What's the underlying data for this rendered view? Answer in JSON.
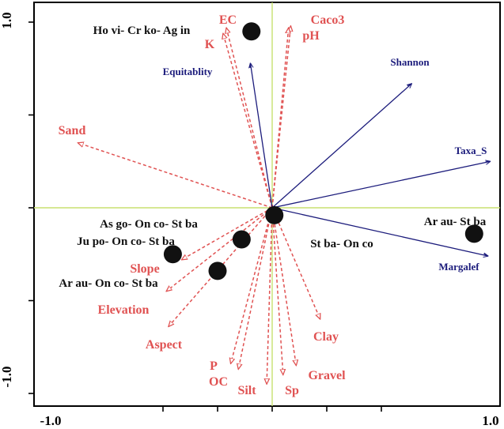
{
  "chart_data": {
    "type": "scatter",
    "title": "",
    "xlabel": "",
    "ylabel": "",
    "xlim": [
      -1.05,
      1.05
    ],
    "ylim": [
      -1.05,
      1.05
    ],
    "x_tick_labels": [
      "-1.0",
      "1.0"
    ],
    "y_tick_labels": [
      "1.0",
      "-1.0"
    ],
    "environmental_vectors": [
      {
        "label": "EC",
        "x": -0.42,
        "y": 0.97
      },
      {
        "label": "K",
        "x": -0.45,
        "y": 0.94
      },
      {
        "label": "Caco3",
        "x": 0.17,
        "y": 0.98
      },
      {
        "label": "pH",
        "x": 0.15,
        "y": 0.97
      },
      {
        "label": "Sand",
        "x": -1.78,
        "y": 0.35
      },
      {
        "label": "Slope",
        "x": -0.83,
        "y": -0.28
      },
      {
        "label": "Elevation",
        "x": -0.97,
        "y": -0.45
      },
      {
        "label": "Aspect",
        "x": -0.95,
        "y": -0.64
      },
      {
        "label": "P",
        "x": -0.38,
        "y": -0.84
      },
      {
        "label": "OC",
        "x": -0.31,
        "y": -0.87
      },
      {
        "label": "Silt",
        "x": -0.05,
        "y": -0.95
      },
      {
        "label": "Sp",
        "x": 0.1,
        "y": -0.9
      },
      {
        "label": "Gravel",
        "x": 0.22,
        "y": -0.85
      },
      {
        "label": "Clay",
        "x": 0.44,
        "y": -0.6
      }
    ],
    "diversity_vectors": [
      {
        "label": "Equitablity",
        "x": -0.2,
        "y": 0.78
      },
      {
        "label": "Shannon",
        "x": 1.28,
        "y": 0.67
      },
      {
        "label": "Taxa_S",
        "x": 2.0,
        "y": 0.25
      },
      {
        "label": "Margalef",
        "x": 1.98,
        "y": -0.26
      }
    ],
    "groups": [
      {
        "label": "Ho vi- Cr ko- Ag in",
        "x": -0.19,
        "y": 0.95
      },
      {
        "label": "Ar au- St ba",
        "x": 1.85,
        "y": -0.14
      },
      {
        "label": "As go- On co- St ba",
        "x": -0.28,
        "y": -0.17
      },
      {
        "label": "Ju po- On co- St ba",
        "x": -0.91,
        "y": -0.25
      },
      {
        "label": "Ar au- On co- St ba",
        "x": -0.5,
        "y": -0.34
      },
      {
        "label": "St ba- On co",
        "x": 0.02,
        "y": -0.04
      }
    ]
  },
  "colors": {
    "environmental": "#e05252",
    "diversity": "#1c1c7c",
    "groups": "#111111",
    "origin_lines": "#c8e070",
    "frame": "#000000"
  }
}
